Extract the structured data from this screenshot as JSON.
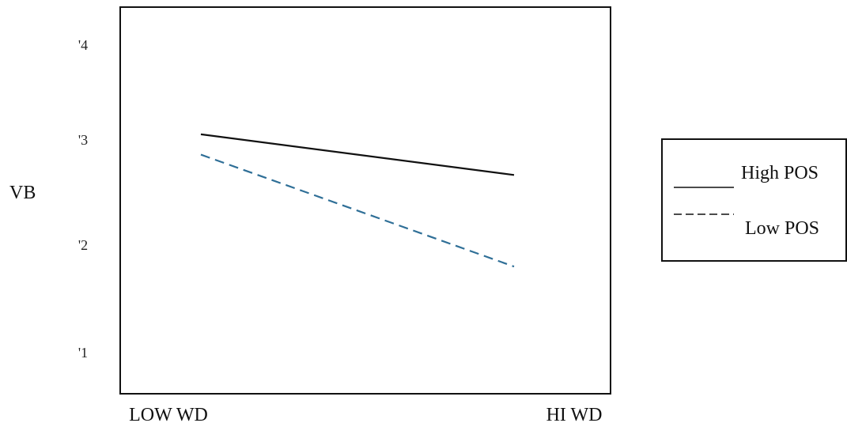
{
  "chart_data": {
    "type": "line",
    "ylabel": "VB",
    "categories": [
      "LOW WD",
      "HI WD"
    ],
    "y_ticks": [
      "'1",
      "'2",
      "'3",
      "'4"
    ],
    "ylim": [
      0.6,
      4.4
    ],
    "grid": false,
    "legend_position": "right",
    "series": [
      {
        "name": "High POS",
        "values": [
          3.15,
          2.75
        ],
        "color": "#111111",
        "style": "solid"
      },
      {
        "name": "Low POS",
        "values": [
          2.95,
          1.85
        ],
        "color": "#2f6f97",
        "style": "dashed"
      }
    ]
  }
}
